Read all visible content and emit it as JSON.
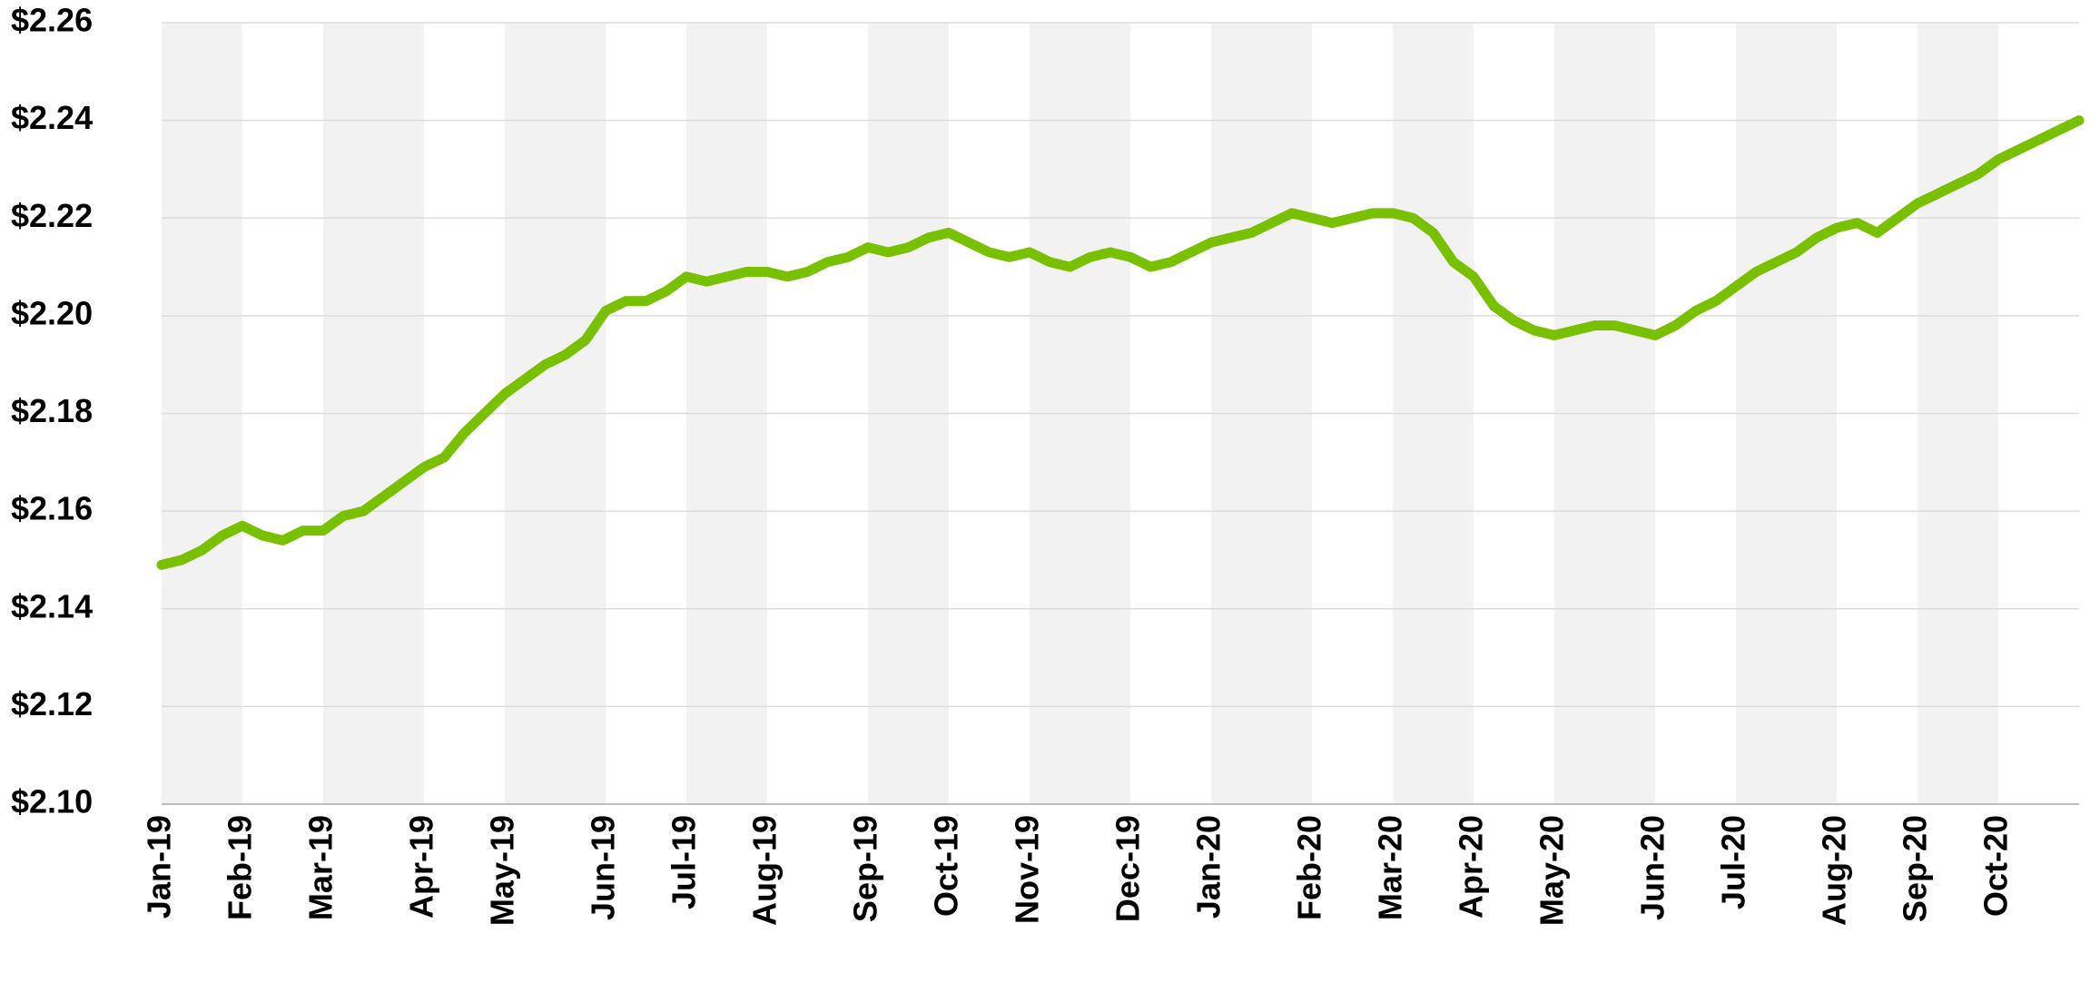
{
  "chart_data": {
    "type": "line",
    "categories": [
      "Jan-19",
      null,
      null,
      null,
      "Feb-19",
      null,
      null,
      null,
      "Mar-19",
      null,
      null,
      null,
      null,
      "Apr-19",
      null,
      null,
      null,
      "May-19",
      null,
      null,
      null,
      null,
      "Jun-19",
      null,
      null,
      null,
      "Jul-19",
      null,
      null,
      null,
      "Aug-19",
      null,
      null,
      null,
      null,
      "Sep-19",
      null,
      null,
      null,
      "Oct-19",
      null,
      null,
      null,
      "Nov-19",
      null,
      null,
      null,
      null,
      "Dec-19",
      null,
      null,
      null,
      "Jan-20",
      null,
      null,
      null,
      null,
      "Feb-20",
      null,
      null,
      null,
      "Mar-20",
      null,
      null,
      null,
      "Apr-20",
      null,
      null,
      null,
      "May-20",
      null,
      null,
      null,
      null,
      "Jun-20",
      null,
      null,
      null,
      "Jul-20",
      null,
      null,
      null,
      null,
      "Aug-20",
      null,
      null,
      null,
      "Sep-20",
      null,
      null,
      null,
      "Oct-20",
      null,
      null,
      null,
      null
    ],
    "values": [
      2.149,
      2.15,
      2.152,
      2.155,
      2.157,
      2.155,
      2.154,
      2.156,
      2.156,
      2.159,
      2.16,
      2.163,
      2.166,
      2.169,
      2.171,
      2.176,
      2.18,
      2.184,
      2.187,
      2.19,
      2.192,
      2.195,
      2.201,
      2.203,
      2.203,
      2.205,
      2.208,
      2.207,
      2.208,
      2.209,
      2.209,
      2.208,
      2.209,
      2.211,
      2.212,
      2.214,
      2.213,
      2.214,
      2.216,
      2.217,
      2.215,
      2.213,
      2.212,
      2.213,
      2.211,
      2.21,
      2.212,
      2.213,
      2.212,
      2.21,
      2.211,
      2.213,
      2.215,
      2.216,
      2.217,
      2.219,
      2.221,
      2.22,
      2.219,
      2.22,
      2.221,
      2.221,
      2.22,
      2.217,
      2.211,
      2.208,
      2.202,
      2.199,
      2.197,
      2.196,
      2.197,
      2.198,
      2.198,
      2.197,
      2.196,
      2.198,
      2.201,
      2.203,
      2.206,
      2.209,
      2.211,
      2.213,
      2.216,
      2.218,
      2.219,
      2.217,
      2.22,
      2.223,
      2.225,
      2.227,
      2.229,
      2.232,
      2.234,
      2.236,
      2.238,
      2.24
    ],
    "color": "#78c000",
    "ylim": [
      2.1,
      2.26
    ],
    "yticks": [
      {
        "value": 2.1,
        "label": "$2.10"
      },
      {
        "value": 2.12,
        "label": "$2.12"
      },
      {
        "value": 2.14,
        "label": "$2.14"
      },
      {
        "value": 2.16,
        "label": "$2.16"
      },
      {
        "value": 2.18,
        "label": "$2.18"
      },
      {
        "value": 2.2,
        "label": "$2.20"
      },
      {
        "value": 2.22,
        "label": "$2.22"
      },
      {
        "value": 2.24,
        "label": "$2.24"
      },
      {
        "value": 2.26,
        "label": "$2.26"
      }
    ],
    "grid": true
  }
}
